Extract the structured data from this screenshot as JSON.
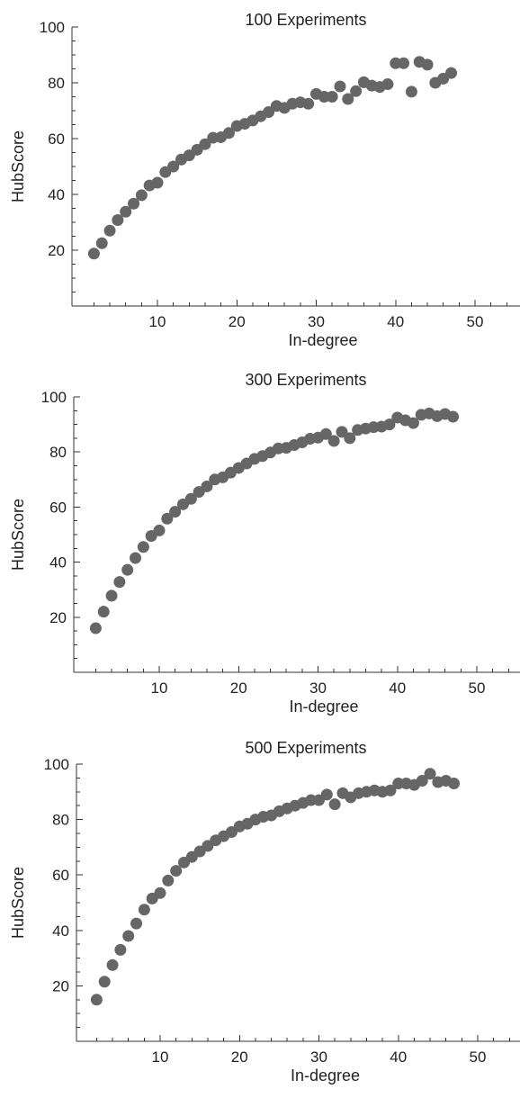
{
  "chart_data": [
    {
      "type": "scatter",
      "title": "100 Experiments",
      "xlabel": "In-degree",
      "ylabel": "HubScore",
      "xlim": [
        0,
        54
      ],
      "ylim": [
        0,
        100
      ],
      "x_ticks": [
        10,
        20,
        30,
        40,
        50
      ],
      "y_ticks": [
        20,
        40,
        60,
        80,
        100
      ],
      "grid": false,
      "marker_color": "#666666",
      "x": [
        2,
        3,
        4,
        5,
        6,
        7,
        8,
        9,
        10,
        11,
        12,
        13,
        14,
        15,
        16,
        17,
        18,
        19,
        20,
        21,
        22,
        23,
        24,
        25,
        26,
        27,
        28,
        29,
        30,
        31,
        32,
        33,
        34,
        35,
        36,
        37,
        38,
        39,
        40,
        41,
        42,
        43,
        44,
        45,
        46,
        47
      ],
      "y": [
        18.8,
        22.5,
        27,
        30.8,
        33.8,
        36.7,
        39.7,
        43.2,
        44.2,
        48,
        50,
        52.5,
        54,
        56,
        58,
        60.3,
        60.5,
        62,
        64.5,
        65.3,
        66.5,
        68,
        69.5,
        71.7,
        71,
        72.5,
        73,
        72.5,
        76,
        75,
        75,
        78.7,
        74.2,
        77,
        80.2,
        79,
        78.5,
        79.5,
        87,
        87,
        76.8,
        87.5,
        86.5,
        80,
        81.5,
        83.5
      ]
    },
    {
      "type": "scatter",
      "title": "300 Experiments",
      "xlabel": "In-degree",
      "ylabel": "HubScore",
      "xlim": [
        0,
        54
      ],
      "ylim": [
        0,
        100
      ],
      "x_ticks": [
        10,
        20,
        30,
        40,
        50
      ],
      "y_ticks": [
        20,
        40,
        60,
        80,
        100
      ],
      "grid": false,
      "marker_color": "#666666",
      "x": [
        2,
        3,
        4,
        5,
        6,
        7,
        8,
        9,
        10,
        11,
        12,
        13,
        14,
        15,
        16,
        17,
        18,
        19,
        20,
        21,
        22,
        23,
        24,
        25,
        26,
        27,
        28,
        29,
        30,
        31,
        32,
        33,
        34,
        35,
        36,
        37,
        38,
        39,
        40,
        41,
        42,
        43,
        44,
        45,
        46,
        47
      ],
      "y": [
        16,
        22,
        27.8,
        32.8,
        37.2,
        41.5,
        45.5,
        49.5,
        51.5,
        55.8,
        58.3,
        61,
        63,
        65.5,
        67.5,
        70,
        70.8,
        72.5,
        74.2,
        75.8,
        77.5,
        78.5,
        79.8,
        81.3,
        81.5,
        82.5,
        83.5,
        84.8,
        85.2,
        86.5,
        84,
        87.3,
        85,
        88,
        88.5,
        89,
        89.2,
        90,
        92.5,
        91.5,
        90.5,
        93.5,
        94,
        93,
        93.8,
        92.8
      ]
    },
    {
      "type": "scatter",
      "title": "500 Experiments",
      "xlabel": "In-degree",
      "ylabel": "HubScore",
      "xlim": [
        0,
        54
      ],
      "ylim": [
        0,
        100
      ],
      "x_ticks": [
        10,
        20,
        30,
        40,
        50
      ],
      "y_ticks": [
        20,
        40,
        60,
        80,
        100
      ],
      "grid": false,
      "marker_color": "#666666",
      "x": [
        2,
        3,
        4,
        5,
        6,
        7,
        8,
        9,
        10,
        11,
        12,
        13,
        14,
        15,
        16,
        17,
        18,
        19,
        20,
        21,
        22,
        23,
        24,
        25,
        26,
        27,
        28,
        29,
        30,
        31,
        32,
        33,
        34,
        35,
        36,
        37,
        38,
        39,
        40,
        41,
        42,
        43,
        44,
        45,
        46,
        47
      ],
      "y": [
        15,
        21.5,
        27.5,
        33,
        38,
        42.5,
        47.5,
        51.5,
        53.5,
        58,
        61.5,
        64.5,
        66.5,
        68.5,
        70.5,
        72.5,
        74,
        75.5,
        77.5,
        78.5,
        80,
        81,
        81.5,
        83,
        84,
        85,
        86,
        87,
        87,
        89,
        85.5,
        89.5,
        88,
        89.5,
        90,
        90.5,
        90,
        90.5,
        93,
        93,
        92.5,
        94,
        96.5,
        93.5,
        94,
        93
      ]
    }
  ]
}
